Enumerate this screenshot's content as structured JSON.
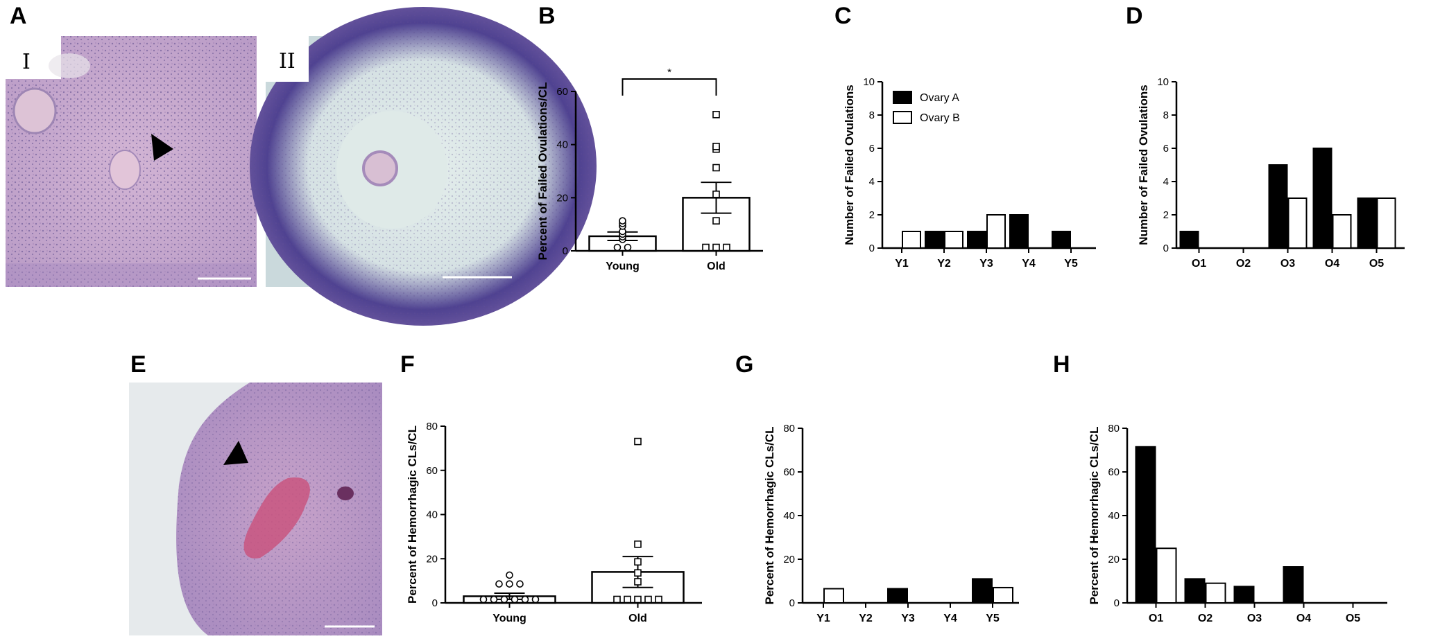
{
  "panels": {
    "A": "A",
    "B": "B",
    "C": "C",
    "D": "D",
    "E": "E",
    "F": "F",
    "G": "G",
    "H": "H"
  },
  "micrograph_labels": {
    "I": "I",
    "II": "II"
  },
  "colors": {
    "ovary_a": "#000000",
    "ovary_b": "#ffffff",
    "tissue": "#c7a8cc",
    "stain_dark": "#5a4a8c"
  },
  "chart_data": [
    {
      "id": "B",
      "type": "bar",
      "categories": [
        "Young",
        "Old"
      ],
      "values": [
        5.5,
        20
      ],
      "sem": [
        1.6,
        5.8
      ],
      "points": [
        [
          0,
          0,
          3,
          4,
          5,
          6,
          8,
          9,
          10
        ],
        [
          0,
          0,
          0,
          10,
          20,
          30,
          37,
          38,
          50
        ]
      ],
      "ylabel": "Percent of Failed Ovulations/CL",
      "ylim": [
        0,
        60
      ],
      "yticks": [
        0,
        20,
        40,
        60
      ],
      "significance": "*"
    },
    {
      "id": "C",
      "type": "bar",
      "categories": [
        "Y1",
        "Y2",
        "Y3",
        "Y4",
        "Y5"
      ],
      "series": [
        {
          "name": "Ovary A",
          "values": [
            0,
            1,
            1,
            2,
            1
          ]
        },
        {
          "name": "Ovary B",
          "values": [
            1,
            1,
            2,
            0,
            0
          ]
        }
      ],
      "ylabel": "Number of Failed Ovulations",
      "ylim": [
        0,
        10
      ],
      "yticks": [
        0,
        2,
        4,
        6,
        8,
        10
      ],
      "legend": "top-left"
    },
    {
      "id": "D",
      "type": "bar",
      "categories": [
        "O1",
        "O2",
        "O3",
        "O4",
        "O5"
      ],
      "series": [
        {
          "name": "Ovary A",
          "values": [
            1,
            0,
            5,
            6,
            3
          ]
        },
        {
          "name": "Ovary B",
          "values": [
            0,
            0,
            3,
            2,
            3
          ]
        }
      ],
      "ylabel": "Number of Failed Ovulations",
      "ylim": [
        0,
        10
      ],
      "yticks": [
        0,
        2,
        4,
        6,
        8,
        10
      ]
    },
    {
      "id": "F",
      "type": "bar",
      "categories": [
        "Young",
        "Old"
      ],
      "values": [
        3,
        14
      ],
      "sem": [
        1.4,
        7
      ],
      "points": [
        [
          0,
          0,
          0,
          0,
          0,
          0,
          7,
          7,
          7,
          11
        ],
        [
          0,
          0,
          0,
          0,
          0,
          8,
          12,
          17,
          25,
          71.5
        ]
      ],
      "ylabel": "Percent of Hemorrhagic CLs/CL",
      "ylim": [
        0,
        80
      ],
      "yticks": [
        0,
        20,
        40,
        60,
        80
      ]
    },
    {
      "id": "G",
      "type": "bar",
      "categories": [
        "Y1",
        "Y2",
        "Y3",
        "Y4",
        "Y5"
      ],
      "series": [
        {
          "name": "Ovary A",
          "values": [
            0,
            0,
            6.5,
            0,
            11
          ]
        },
        {
          "name": "Ovary B",
          "values": [
            6.5,
            0,
            0,
            0,
            7
          ]
        }
      ],
      "ylabel": "Percent of Hemorrhagic CLs/CL",
      "ylim": [
        0,
        80
      ],
      "yticks": [
        0,
        20,
        40,
        60,
        80
      ]
    },
    {
      "id": "H",
      "type": "bar",
      "categories": [
        "O1",
        "O2",
        "O3",
        "O4",
        "O5"
      ],
      "series": [
        {
          "name": "Ovary A",
          "values": [
            71.5,
            11,
            7.5,
            16.5,
            0
          ]
        },
        {
          "name": "Ovary B",
          "values": [
            25,
            9,
            0,
            0,
            0
          ]
        }
      ],
      "ylabel": "Percent of Hemorrhagic CLs/CL",
      "ylim": [
        0,
        80
      ],
      "yticks": [
        0,
        20,
        40,
        60,
        80
      ]
    }
  ]
}
